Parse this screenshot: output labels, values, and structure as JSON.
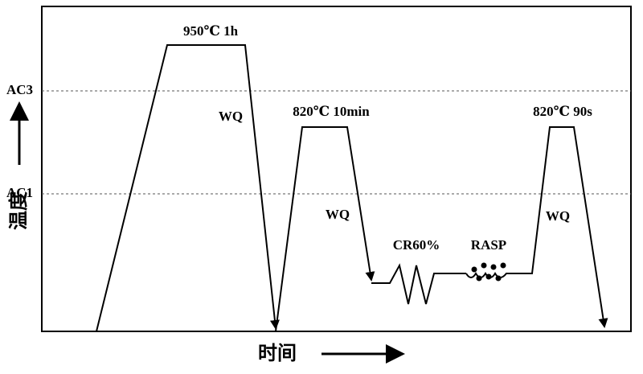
{
  "axes": {
    "y_label": "温度",
    "x_label": "时间"
  },
  "levels": [
    {
      "label": "AC3"
    },
    {
      "label": "AC1"
    }
  ],
  "annotations": [
    {
      "label": "950℃ 1h"
    },
    {
      "label": "WQ"
    },
    {
      "label": "820℃ 10min"
    },
    {
      "label": "WQ"
    },
    {
      "label": "CR60%"
    },
    {
      "label": "RASP"
    },
    {
      "label": "820℃ 90s"
    },
    {
      "label": "WQ"
    }
  ]
}
